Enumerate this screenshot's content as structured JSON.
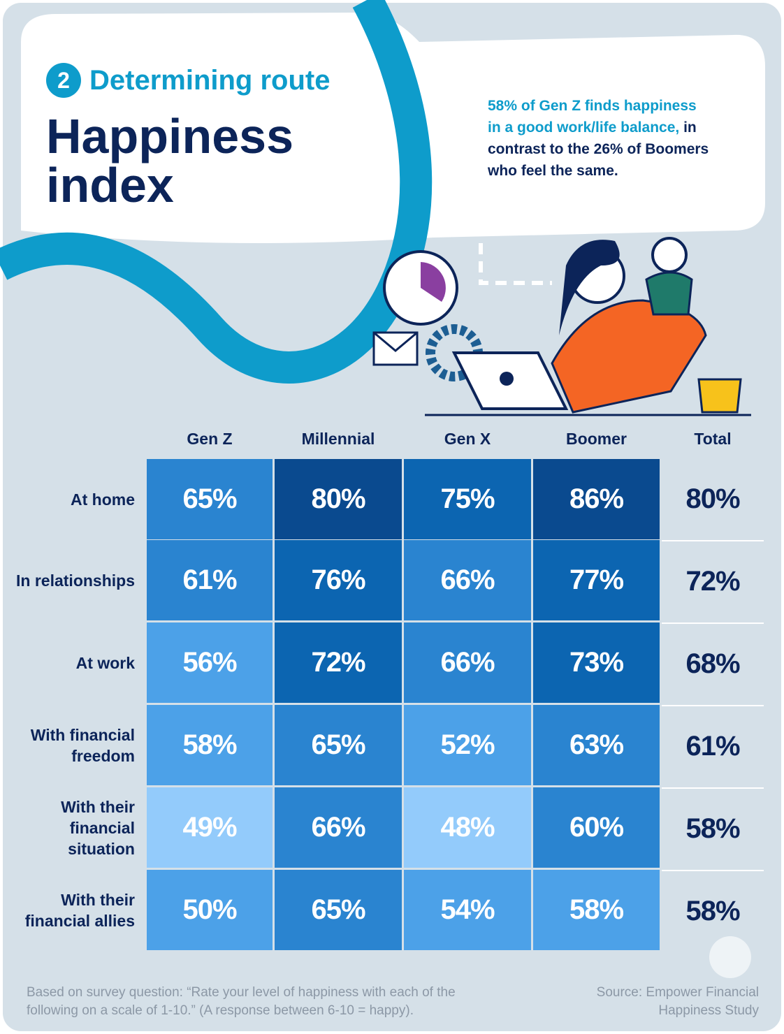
{
  "header": {
    "step": "2",
    "subtitle": "Determining route",
    "title": "Happiness index"
  },
  "callout": {
    "highlight": "58% of Gen Z finds happiness in a good work/life balance,",
    "text": "in contrast to the 26% of Boomers who feel the same."
  },
  "table": {
    "columns": [
      "Gen Z",
      "Millennial",
      "Gen X",
      "Boomer",
      "Total"
    ],
    "rows": [
      {
        "label": "At home",
        "values": [
          "65%",
          "80%",
          "75%",
          "86%",
          "80%"
        ],
        "colors": [
          "#2a84d0",
          "#0a4a8f",
          "#0c65b1",
          "#0a4a8f"
        ]
      },
      {
        "label": "In relationships",
        "values": [
          "61%",
          "76%",
          "66%",
          "77%",
          "72%"
        ],
        "colors": [
          "#2a84d0",
          "#0c65b1",
          "#2a84d0",
          "#0c65b1"
        ]
      },
      {
        "label": "At work",
        "values": [
          "56%",
          "72%",
          "66%",
          "73%",
          "68%"
        ],
        "colors": [
          "#4ca1e8",
          "#0c65b1",
          "#2a84d0",
          "#0c65b1"
        ]
      },
      {
        "label": "With financial freedom",
        "values": [
          "58%",
          "65%",
          "52%",
          "63%",
          "61%"
        ],
        "colors": [
          "#4ca1e8",
          "#2a84d0",
          "#4ca1e8",
          "#2a84d0"
        ]
      },
      {
        "label": "With their financial situation",
        "values": [
          "49%",
          "66%",
          "48%",
          "60%",
          "58%"
        ],
        "colors": [
          "#93cbfb",
          "#2a84d0",
          "#93cbfb",
          "#2a84d0"
        ]
      },
      {
        "label": "With their financial allies",
        "values": [
          "50%",
          "65%",
          "54%",
          "58%",
          "58%"
        ],
        "colors": [
          "#4ca1e8",
          "#2a84d0",
          "#4ca1e8",
          "#4ca1e8"
        ]
      }
    ]
  },
  "footer": {
    "note": "Based on survey question: “Rate your level of happiness with each of the following on a scale of 1-10.” (A response between 6-10 = happy).",
    "source": "Source: Empower Financial Happiness Study"
  }
}
